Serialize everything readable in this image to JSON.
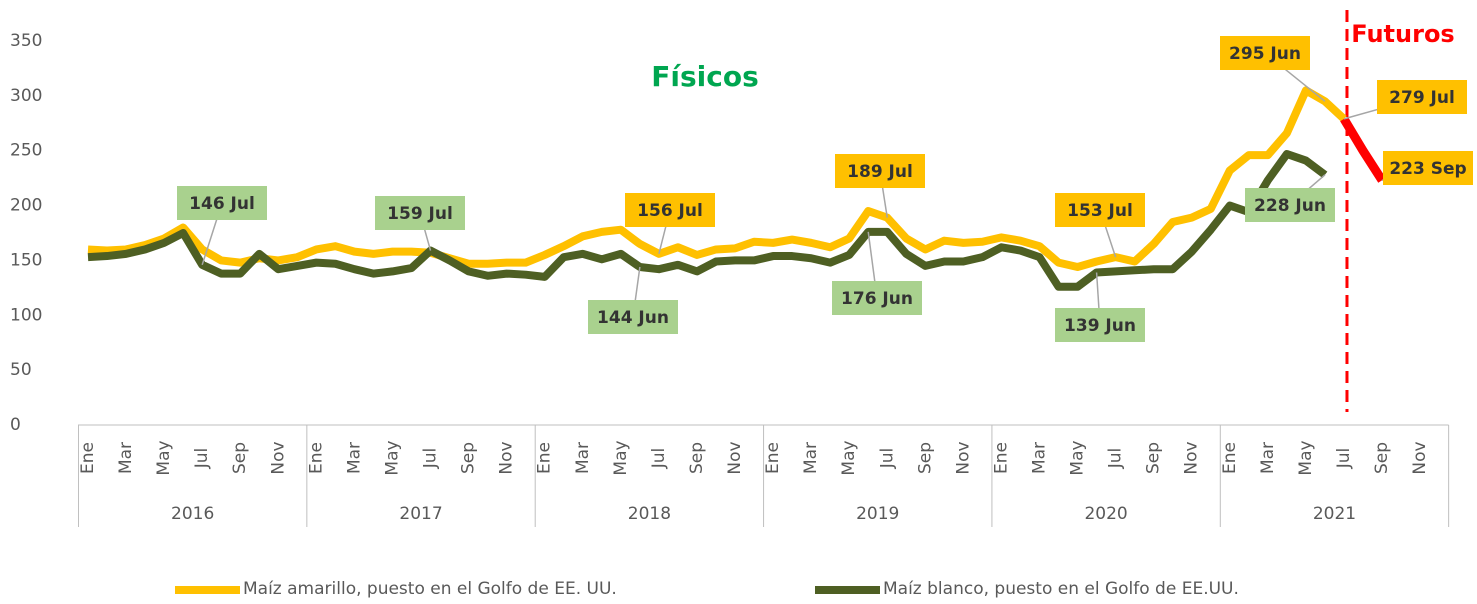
{
  "chart_data": {
    "type": "line",
    "title": "Físicos",
    "subtitle": "Futuros",
    "categories": [
      "Ene",
      null,
      "Mar",
      null,
      "May",
      null,
      "Jul",
      null,
      "Sep",
      null,
      "Nov",
      null,
      "Ene",
      null,
      "Mar",
      null,
      "May",
      null,
      "Jul",
      null,
      "Sep",
      null,
      "Nov",
      null,
      "Ene",
      null,
      "Mar",
      null,
      "May",
      null,
      "Jul",
      null,
      "Sep",
      null,
      "Nov",
      null,
      "Ene",
      null,
      "Mar",
      null,
      "May",
      null,
      "Jul",
      null,
      "Sep",
      null,
      "Nov",
      null,
      "Ene",
      null,
      "Mar",
      null,
      "May",
      null,
      "Jul",
      null,
      "Sep",
      null,
      "Nov",
      null,
      "Ene",
      null,
      "Mar",
      null,
      "May",
      null,
      "Jul",
      null,
      "Sep",
      null,
      "Nov",
      null
    ],
    "years": [
      "2016",
      "2017",
      "2018",
      "2019",
      "2020",
      "2021"
    ],
    "series": [
      {
        "name": "Maíz amarillo, puesto en el Golfo de EE. UU.",
        "color": "#ffc000",
        "values": [
          160,
          159,
          160,
          164,
          170,
          180,
          160,
          150,
          148,
          152,
          150,
          153,
          160,
          163,
          158,
          156,
          158,
          158,
          157,
          152,
          147,
          147,
          148,
          148,
          155,
          163,
          172,
          176,
          178,
          165,
          156,
          162,
          155,
          160,
          161,
          167,
          166,
          169,
          166,
          162,
          170,
          195,
          189,
          170,
          160,
          168,
          166,
          167,
          171,
          168,
          163,
          148,
          144,
          149,
          153,
          149,
          165,
          185,
          189,
          197,
          232,
          246,
          246,
          266,
          305,
          295,
          279,
          null,
          null,
          null,
          null,
          null
        ]
      },
      {
        "name": "Maíz blanco, puesto en el Golfo de EE.UU.",
        "color": "#4e5f23",
        "values": [
          153,
          154,
          156,
          160,
          166,
          175,
          146,
          138,
          138,
          156,
          142,
          145,
          148,
          147,
          142,
          138,
          140,
          143,
          159,
          150,
          140,
          136,
          138,
          137,
          135,
          153,
          156,
          151,
          156,
          144,
          142,
          146,
          140,
          149,
          150,
          150,
          154,
          154,
          152,
          148,
          155,
          176,
          176,
          156,
          145,
          149,
          149,
          153,
          162,
          159,
          153,
          126,
          126,
          139,
          140,
          141,
          142,
          142,
          158,
          178,
          200,
          194,
          223,
          247,
          241,
          228,
          null,
          null,
          null,
          null,
          null,
          null
        ]
      },
      {
        "color": "#ff0000",
        "values": [
          null,
          null,
          null,
          null,
          null,
          null,
          null,
          null,
          null,
          null,
          null,
          null,
          null,
          null,
          null,
          null,
          null,
          null,
          null,
          null,
          null,
          null,
          null,
          null,
          null,
          null,
          null,
          null,
          null,
          null,
          null,
          null,
          null,
          null,
          null,
          null,
          null,
          null,
          null,
          null,
          null,
          null,
          null,
          null,
          null,
          null,
          null,
          null,
          null,
          null,
          null,
          null,
          null,
          null,
          null,
          null,
          null,
          null,
          null,
          null,
          null,
          null,
          null,
          null,
          null,
          null,
          279,
          250,
          223,
          null,
          null,
          null
        ]
      }
    ],
    "annotations": [
      "146 Jul",
      "159 Jul",
      "156 Jul",
      "144 Jun",
      "189 Jul",
      "176 Jun",
      "153 Jul",
      "139 Jun",
      "295 Jun",
      "279 Jul",
      "223 Sep",
      "228 Jun"
    ],
    "ylim": [
      0,
      350
    ],
    "yticks": [
      0,
      50,
      100,
      150,
      200,
      250,
      300,
      350
    ],
    "grid": false,
    "legend": "bottom"
  }
}
